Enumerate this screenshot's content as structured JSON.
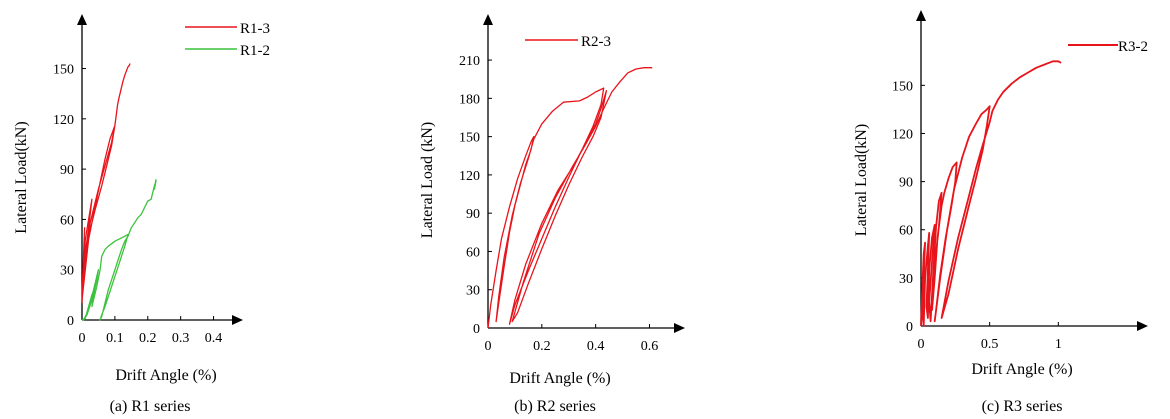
{
  "colors": {
    "red": "#e8141b",
    "green": "#3cc23c",
    "axis": "#000000"
  },
  "chart_data": [
    {
      "type": "line",
      "caption": "(a) R1 series",
      "xlabel": "Drift Angle (%)",
      "ylabel": "Lateral Load(kN)",
      "xlim": [
        0,
        0.45
      ],
      "ylim": [
        0,
        170
      ],
      "xticks": [
        "0",
        "0.1",
        "0.2",
        "0.3",
        "0.4"
      ],
      "xtick_values": [
        0,
        0.1,
        0.2,
        0.3,
        0.4
      ],
      "yticks": [
        "0",
        "30",
        "60",
        "90",
        "120",
        "150"
      ],
      "ytick_values": [
        0,
        30,
        60,
        90,
        120,
        150
      ],
      "series": [
        {
          "name": "R1-3",
          "color": "#e8141b",
          "points": [
            [
              0,
              10
            ],
            [
              0.004,
              35
            ],
            [
              0.008,
              55
            ],
            [
              0.003,
              30
            ],
            [
              0,
              15
            ],
            [
              0.01,
              40
            ],
            [
              0.02,
              55
            ],
            [
              0.03,
              72
            ],
            [
              0.01,
              48
            ],
            [
              0.003,
              22
            ],
            [
              0,
              12
            ],
            [
              0.02,
              48
            ],
            [
              0.04,
              68
            ],
            [
              0.055,
              82
            ],
            [
              0.07,
              96
            ],
            [
              0.085,
              108
            ],
            [
              0.1,
              116
            ],
            [
              0.09,
              104
            ],
            [
              0.075,
              92
            ],
            [
              0.06,
              80
            ],
            [
              0.04,
              66
            ],
            [
              0.02,
              50
            ],
            [
              0.005,
              28
            ],
            [
              0.025,
              58
            ],
            [
              0.05,
              78
            ],
            [
              0.07,
              92
            ],
            [
              0.09,
              106
            ],
            [
              0.1,
              116
            ],
            [
              0.104,
              122
            ],
            [
              0.108,
              128
            ],
            [
              0.112,
              132
            ],
            [
              0.118,
              137
            ],
            [
              0.124,
              142
            ],
            [
              0.13,
              146
            ],
            [
              0.136,
              149
            ],
            [
              0.14,
              151
            ],
            [
              0.144,
              152
            ],
            [
              0.146,
              153
            ]
          ]
        },
        {
          "name": "R1-2",
          "color": "#3cc23c",
          "points": [
            [
              0,
              0
            ],
            [
              0.01,
              1
            ],
            [
              0.02,
              8
            ],
            [
              0.03,
              15
            ],
            [
              0.04,
              20
            ],
            [
              0.045,
              26
            ],
            [
              0.04,
              22
            ],
            [
              0.03,
              12
            ],
            [
              0.015,
              3
            ],
            [
              0.005,
              0
            ],
            [
              0.02,
              6
            ],
            [
              0.03,
              14
            ],
            [
              0.04,
              22
            ],
            [
              0.05,
              30
            ],
            [
              0.045,
              24
            ],
            [
              0.035,
              15
            ],
            [
              0.03,
              8
            ],
            [
              0.045,
              20
            ],
            [
              0.055,
              30
            ],
            [
              0.06,
              38
            ],
            [
              0.07,
              42
            ],
            [
              0.08,
              44
            ],
            [
              0.1,
              47
            ],
            [
              0.12,
              49
            ],
            [
              0.13,
              50
            ],
            [
              0.14,
              51
            ],
            [
              0.13,
              44
            ],
            [
              0.12,
              38
            ],
            [
              0.11,
              32
            ],
            [
              0.1,
              26
            ],
            [
              0.09,
              20
            ],
            [
              0.08,
              14
            ],
            [
              0.07,
              8
            ],
            [
              0.06,
              3
            ],
            [
              0.055,
              0
            ],
            [
              0.06,
              2
            ],
            [
              0.07,
              10
            ],
            [
              0.08,
              18
            ],
            [
              0.09,
              24
            ],
            [
              0.1,
              30
            ],
            [
              0.11,
              36
            ],
            [
              0.12,
              42
            ],
            [
              0.13,
              47
            ],
            [
              0.14,
              50
            ],
            [
              0.15,
              55
            ],
            [
              0.16,
              58
            ],
            [
              0.17,
              61
            ],
            [
              0.18,
              63
            ],
            [
              0.19,
              67
            ],
            [
              0.2,
              71
            ],
            [
              0.21,
              72
            ],
            [
              0.215,
              76
            ],
            [
              0.22,
              80
            ],
            [
              0.225,
              83
            ],
            [
              0.22,
              78
            ],
            [
              0.225,
              84
            ]
          ]
        }
      ]
    },
    {
      "type": "line",
      "caption": "(b) R2 series",
      "xlabel": "Drift Angle (%)",
      "ylabel": "Lateral Load (kN)",
      "xlim": [
        0,
        0.68
      ],
      "ylim": [
        0,
        232
      ],
      "xticks": [
        "0",
        "0.2",
        "0.4",
        "0.6"
      ],
      "xtick_values": [
        0,
        0.2,
        0.4,
        0.6
      ],
      "yticks": [
        "0",
        "30",
        "60",
        "90",
        "120",
        "150",
        "180",
        "210"
      ],
      "ytick_values": [
        0,
        30,
        60,
        90,
        120,
        150,
        180,
        210
      ],
      "series": [
        {
          "name": "R2-3",
          "color": "#e8141b",
          "points": [
            [
              0,
              0
            ],
            [
              0.01,
              18
            ],
            [
              0.03,
              45
            ],
            [
              0.05,
              70
            ],
            [
              0.08,
              95
            ],
            [
              0.11,
              117
            ],
            [
              0.14,
              135
            ],
            [
              0.16,
              146
            ],
            [
              0.17,
              150
            ],
            [
              0.16,
              140
            ],
            [
              0.14,
              128
            ],
            [
              0.12,
              112
            ],
            [
              0.1,
              96
            ],
            [
              0.08,
              75
            ],
            [
              0.06,
              48
            ],
            [
              0.04,
              20
            ],
            [
              0.03,
              5
            ],
            [
              0.04,
              25
            ],
            [
              0.06,
              55
            ],
            [
              0.09,
              88
            ],
            [
              0.12,
              113
            ],
            [
              0.15,
              133
            ],
            [
              0.17,
              148
            ],
            [
              0.2,
              160
            ],
            [
              0.24,
              170
            ],
            [
              0.28,
              177
            ],
            [
              0.34,
              178
            ],
            [
              0.37,
              181
            ],
            [
              0.4,
              185
            ],
            [
              0.43,
              188
            ],
            [
              0.42,
              175
            ],
            [
              0.39,
              158
            ],
            [
              0.35,
              140
            ],
            [
              0.3,
              118
            ],
            [
              0.25,
              95
            ],
            [
              0.2,
              70
            ],
            [
              0.15,
              45
            ],
            [
              0.1,
              18
            ],
            [
              0.08,
              3
            ],
            [
              0.1,
              22
            ],
            [
              0.14,
              50
            ],
            [
              0.2,
              82
            ],
            [
              0.26,
              108
            ],
            [
              0.32,
              128
            ],
            [
              0.37,
              148
            ],
            [
              0.4,
              160
            ],
            [
              0.42,
              172
            ],
            [
              0.44,
              186
            ],
            [
              0.42,
              165
            ],
            [
              0.39,
              150
            ],
            [
              0.35,
              134
            ],
            [
              0.3,
              112
            ],
            [
              0.25,
              88
            ],
            [
              0.2,
              62
            ],
            [
              0.15,
              35
            ],
            [
              0.11,
              12
            ],
            [
              0.09,
              5
            ],
            [
              0.13,
              35
            ],
            [
              0.19,
              74
            ],
            [
              0.25,
              102
            ],
            [
              0.31,
              125
            ],
            [
              0.36,
              143
            ],
            [
              0.4,
              158
            ],
            [
              0.43,
              172
            ],
            [
              0.46,
              185
            ],
            [
              0.49,
              193
            ],
            [
              0.52,
              200
            ],
            [
              0.55,
              203
            ],
            [
              0.58,
              204
            ],
            [
              0.61,
              204
            ]
          ]
        }
      ]
    },
    {
      "type": "line",
      "caption": "(c) R3 series",
      "xlabel": "Drift Angle (%)",
      "ylabel": "Lateral Load(kN)",
      "xlim": [
        0,
        1.42
      ],
      "ylim": [
        0,
        182
      ],
      "xticks": [
        "0",
        "0.5",
        "1"
      ],
      "xtick_values": [
        0,
        0.5,
        1
      ],
      "yticks": [
        "0",
        "30",
        "60",
        "90",
        "120",
        "150"
      ],
      "ytick_values": [
        0,
        30,
        60,
        90,
        120,
        150
      ],
      "series": [
        {
          "name": "R3-2",
          "color": "#e8141b",
          "points": [
            [
              0,
              0
            ],
            [
              0.01,
              25
            ],
            [
              0.02,
              45
            ],
            [
              0.03,
              52
            ],
            [
              0.02,
              30
            ],
            [
              0.01,
              8
            ],
            [
              0.02,
              0
            ],
            [
              0.03,
              30
            ],
            [
              0.05,
              50
            ],
            [
              0.06,
              58
            ],
            [
              0.05,
              35
            ],
            [
              0.04,
              12
            ],
            [
              0.05,
              5
            ],
            [
              0.06,
              35
            ],
            [
              0.08,
              55
            ],
            [
              0.1,
              63
            ],
            [
              0.08,
              40
            ],
            [
              0.06,
              15
            ],
            [
              0.07,
              3
            ],
            [
              0.09,
              35
            ],
            [
              0.11,
              62
            ],
            [
              0.13,
              78
            ],
            [
              0.15,
              83
            ],
            [
              0.13,
              62
            ],
            [
              0.1,
              38
            ],
            [
              0.08,
              10
            ],
            [
              0.1,
              30
            ],
            [
              0.12,
              55
            ],
            [
              0.15,
              75
            ],
            [
              0.17,
              83
            ],
            [
              0.2,
              92
            ],
            [
              0.23,
              99
            ],
            [
              0.26,
              102
            ],
            [
              0.25,
              90
            ],
            [
              0.22,
              74
            ],
            [
              0.18,
              55
            ],
            [
              0.14,
              32
            ],
            [
              0.11,
              10
            ],
            [
              0.1,
              3
            ],
            [
              0.14,
              30
            ],
            [
              0.19,
              60
            ],
            [
              0.24,
              85
            ],
            [
              0.3,
              105
            ],
            [
              0.35,
              118
            ],
            [
              0.4,
              126
            ],
            [
              0.44,
              132
            ],
            [
              0.48,
              135
            ],
            [
              0.5,
              137
            ],
            [
              0.48,
              125
            ],
            [
              0.45,
              110
            ],
            [
              0.4,
              92
            ],
            [
              0.34,
              72
            ],
            [
              0.27,
              48
            ],
            [
              0.2,
              20
            ],
            [
              0.15,
              5
            ],
            [
              0.2,
              28
            ],
            [
              0.27,
              55
            ],
            [
              0.34,
              78
            ],
            [
              0.4,
              98
            ],
            [
              0.45,
              113
            ],
            [
              0.5,
              127
            ],
            [
              0.52,
              134
            ],
            [
              0.56,
              141
            ],
            [
              0.6,
              146
            ],
            [
              0.66,
              151
            ],
            [
              0.72,
              155
            ],
            [
              0.78,
              158
            ],
            [
              0.84,
              161
            ],
            [
              0.9,
              163
            ],
            [
              0.96,
              165
            ],
            [
              1.0,
              165
            ],
            [
              1.02,
              164
            ]
          ]
        }
      ]
    }
  ]
}
